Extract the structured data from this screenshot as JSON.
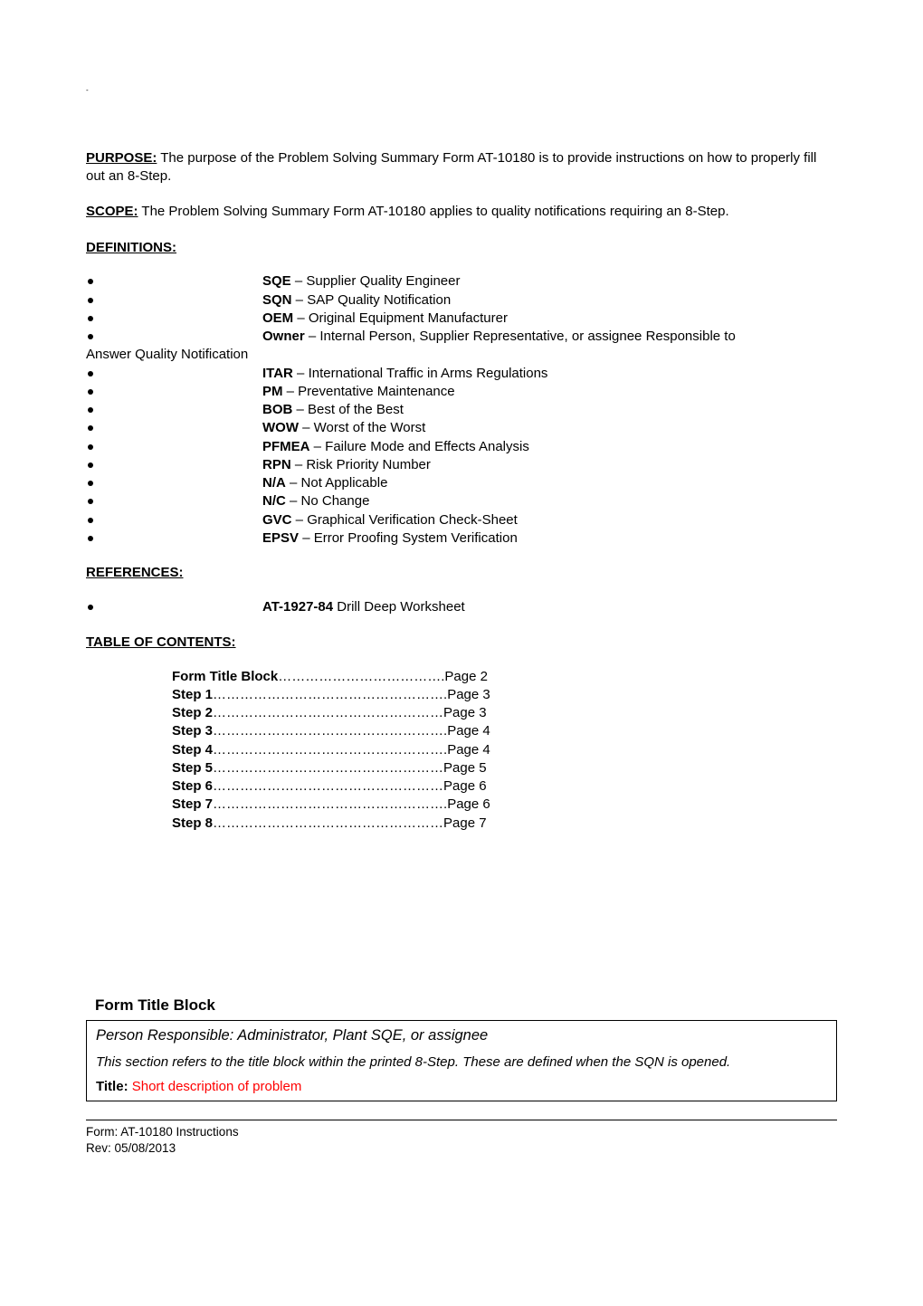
{
  "purpose": {
    "label": "PURPOSE:",
    "text": " The purpose of the Problem Solving Summary Form AT-10180 is to provide instructions on how to properly fill out an 8-Step."
  },
  "scope": {
    "label": "SCOPE:",
    "text": " The Problem Solving Summary Form AT-10180 applies to quality notifications requiring an 8-Step."
  },
  "definitions": {
    "heading": "DEFINITIONS:",
    "items": [
      {
        "term": "SQE",
        "desc": " – Supplier Quality Engineer"
      },
      {
        "term": "SQN",
        "desc": " – SAP Quality Notification"
      },
      {
        "term": "OEM",
        "desc": " – Original Equipment Manufacturer"
      },
      {
        "term": "Owner",
        "desc": " – Internal Person, Supplier Representative, or assignee Responsible to"
      }
    ],
    "wrap": "Answer Quality Notification",
    "items2": [
      {
        "term": "ITAR",
        "desc": " – International Traffic in Arms Regulations"
      },
      {
        "term": "PM",
        "desc": " – Preventative Maintenance"
      },
      {
        "term": "BOB",
        "desc": " – Best of the Best"
      },
      {
        "term": "WOW",
        "desc": " – Worst of the Worst"
      },
      {
        "term": "PFMEA",
        "desc": " – Failure Mode and Effects Analysis"
      },
      {
        "term": "RPN",
        "desc": " – Risk Priority Number"
      },
      {
        "term": "N/A",
        "desc": " – Not Applicable"
      },
      {
        "term": "N/C",
        "desc": " – No Change"
      },
      {
        "term": "GVC",
        "desc": " – Graphical Verification Check-Sheet"
      },
      {
        "term": "EPSV",
        "desc": " – Error Proofing System Verification"
      }
    ]
  },
  "references": {
    "heading": "REFERENCES:",
    "items": [
      {
        "term": "AT-1927-84",
        "desc": " Drill Deep Worksheet"
      }
    ]
  },
  "toc": {
    "heading": "TABLE OF CONTENTS:",
    "rows": [
      {
        "label": "Form Title Block",
        "dots": "……………………………….",
        "page": "Page 2"
      },
      {
        "label": "Step 1",
        "dots": "…………………………………………….",
        "page": "Page 3"
      },
      {
        "label": "Step 2",
        "dots": "……………………………………………",
        "page": "Page 3"
      },
      {
        "label": "Step 3",
        "dots": "…………………………………………….",
        "page": "Page 4"
      },
      {
        "label": "Step 4",
        "dots": "…………………………………………….",
        "page": "Page 4"
      },
      {
        "label": "Step 5",
        "dots": "……………………………………………",
        "page": "Page 5"
      },
      {
        "label": "Step 6",
        "dots": "……………………………………………",
        "page": "Page 6"
      },
      {
        "label": "Step 7",
        "dots": "…………………………………………….",
        "page": "Page 6"
      },
      {
        "label": "Step 8",
        "dots": "……………………………………………",
        "page": "Page 7"
      }
    ]
  },
  "formTitleBlock": {
    "heading": "Form Title Block",
    "line1": "Person Responsible: Administrator, Plant SQE, or assignee",
    "line2": "This section refers to the title block within the printed 8-Step. These are defined when the SQN is opened.",
    "titleLabel": "Title:",
    "titleValue": " Short description of problem"
  },
  "footer": {
    "line1": "Form:  AT-10180 Instructions",
    "line2": "Rev:  05/08/2013"
  }
}
